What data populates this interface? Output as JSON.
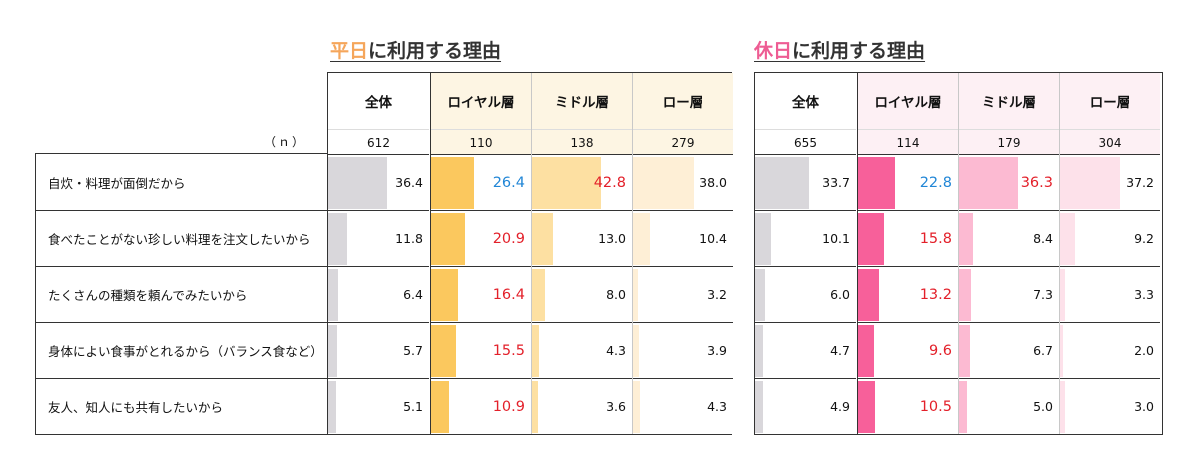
{
  "titles": [
    {
      "highlight": "平日",
      "rest": "に利用する理由"
    },
    {
      "highlight": "休日",
      "rest": "に利用する理由"
    }
  ],
  "n_label": "（ｎ）",
  "row_labels": [
    "自炊・料理が面倒だから",
    "食べたことがない珍しい料理を注文したいから",
    "たくさんの種類を頼んでみたいから",
    "身体によい食事がとれるから（バランス食など）",
    "友人、知人にも共有したいから"
  ],
  "colors": {
    "overall_bar": "#d9d7db",
    "weekday_header_bg": "#fdf5e3",
    "holiday_header_bg": "#fdf0f4",
    "weekday_bars": [
      "#fbc85e",
      "#fde0a2",
      "#feefd6"
    ],
    "holiday_bars": [
      "#f7609a",
      "#fcbad2",
      "#fde1ea"
    ],
    "red": "#e3202a",
    "blue": "#2186d6"
  },
  "chart_data": {
    "type": "table",
    "value_unit": "%",
    "bar_scale_max": 60,
    "groups": [
      {
        "title": "平日に利用する理由",
        "columns": [
          {
            "name": "全体",
            "n": "612",
            "values": [
              36.4,
              11.8,
              6.4,
              5.7,
              5.1
            ],
            "display": [
              "36.4",
              "11.8",
              "6.4",
              "5.7",
              "5.1"
            ],
            "highlight": [
              "",
              "",
              "",
              "",
              ""
            ]
          },
          {
            "name": "ロイヤル層",
            "n": "110",
            "values": [
              26.4,
              20.9,
              16.4,
              15.5,
              10.9
            ],
            "display": [
              "26.4",
              "20.9",
              "16.4",
              "15.5",
              "10.9"
            ],
            "highlight": [
              "blue",
              "red",
              "red",
              "red",
              "red"
            ]
          },
          {
            "name": "ミドル層",
            "n": "138",
            "values": [
              42.8,
              13.0,
              8.0,
              4.3,
              3.6
            ],
            "display": [
              "42.8",
              "13.0",
              "8.0",
              "4.3",
              "3.6"
            ],
            "highlight": [
              "red",
              "",
              "",
              "",
              ""
            ]
          },
          {
            "name": "ロー層",
            "n": "279",
            "values": [
              38.0,
              10.4,
              3.2,
              3.9,
              4.3
            ],
            "display": [
              "38.0",
              "10.4",
              "3.2",
              "3.9",
              "4.3"
            ],
            "highlight": [
              "",
              "",
              "",
              "",
              ""
            ]
          }
        ]
      },
      {
        "title": "休日に利用する理由",
        "columns": [
          {
            "name": "全体",
            "n": "655",
            "values": [
              33.7,
              10.1,
              6.0,
              4.7,
              4.9
            ],
            "display": [
              "33.7",
              "10.1",
              "6.0",
              "4.7",
              "4.9"
            ],
            "highlight": [
              "",
              "",
              "",
              "",
              ""
            ]
          },
          {
            "name": "ロイヤル層",
            "n": "114",
            "values": [
              22.8,
              15.8,
              13.2,
              9.6,
              10.5
            ],
            "display": [
              "22.8",
              "15.8",
              "13.2",
              "9.6",
              "10.5"
            ],
            "highlight": [
              "blue",
              "red",
              "red",
              "red",
              "red"
            ]
          },
          {
            "name": "ミドル層",
            "n": "179",
            "values": [
              36.3,
              8.4,
              7.3,
              6.7,
              5.0
            ],
            "display": [
              "36.3",
              "8.4",
              "7.3",
              "6.7",
              "5.0"
            ],
            "highlight": [
              "red",
              "",
              "",
              "",
              ""
            ]
          },
          {
            "name": "ロー層",
            "n": "304",
            "values": [
              37.2,
              9.2,
              3.3,
              2.0,
              3.0
            ],
            "display": [
              "37.2",
              "9.2",
              "3.3",
              "2.0",
              "3.0"
            ],
            "highlight": [
              "",
              "",
              "",
              "",
              ""
            ]
          }
        ]
      }
    ]
  }
}
